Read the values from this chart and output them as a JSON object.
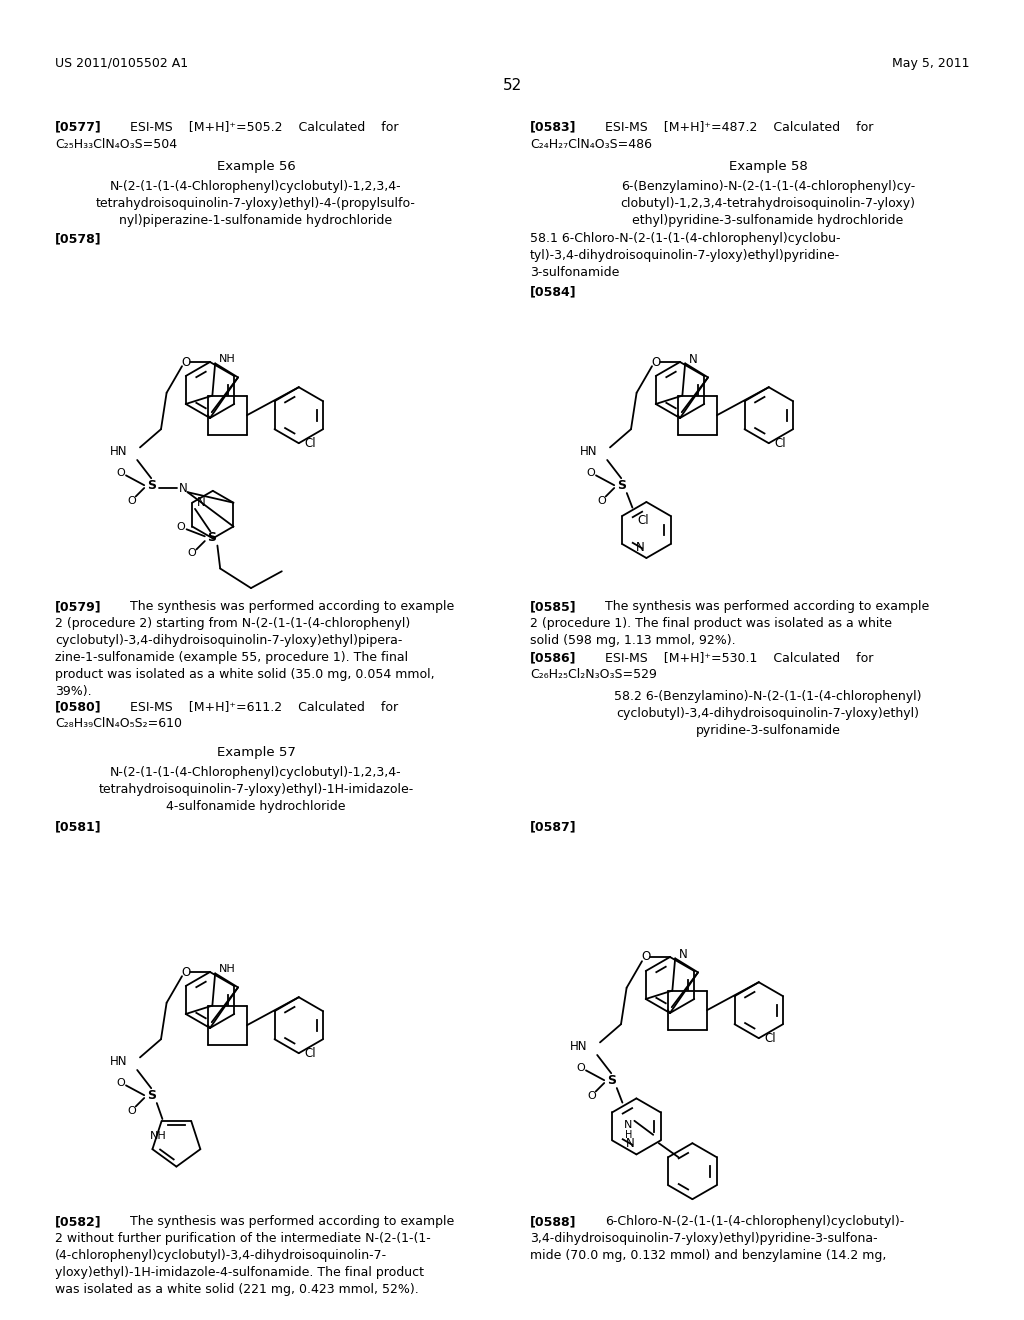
{
  "header_left": "US 2011/0105502 A1",
  "header_right": "May 5, 2011",
  "page_num": "52",
  "bg": "#ffffff"
}
